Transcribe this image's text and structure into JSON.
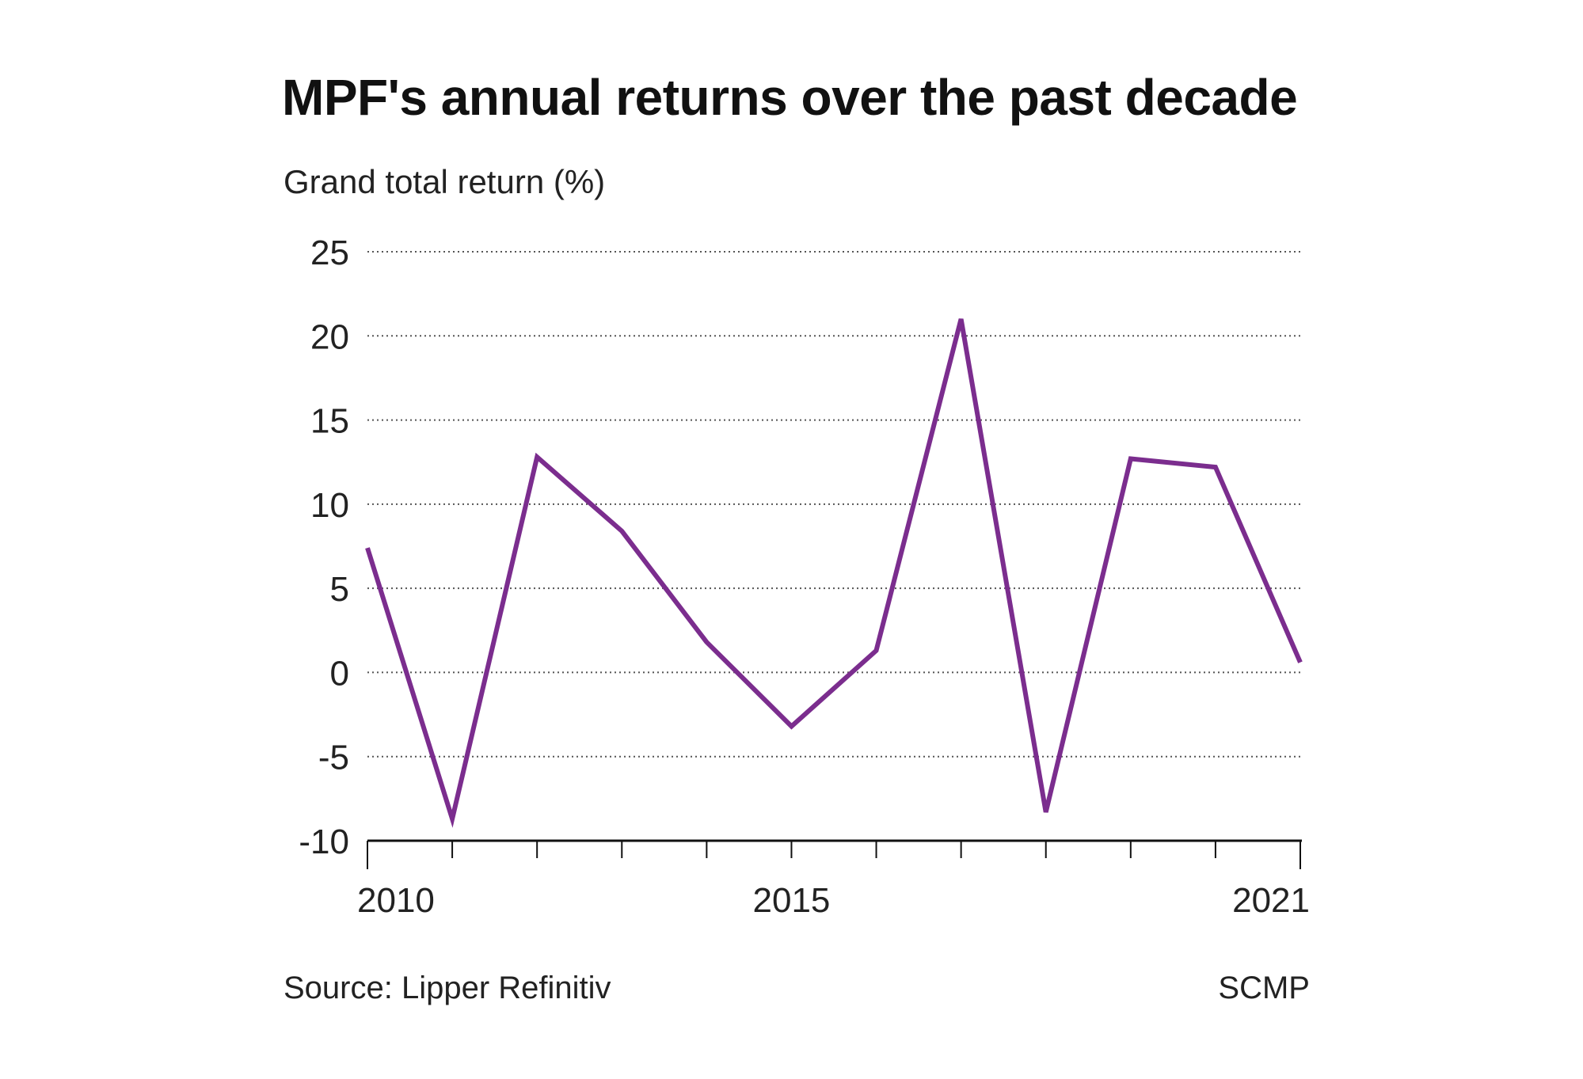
{
  "chart_data": {
    "type": "line",
    "title": "MPF's annual returns over the past decade",
    "subtitle": "Grand total return (%)",
    "x": [
      2010,
      2011,
      2012,
      2013,
      2014,
      2015,
      2016,
      2017,
      2018,
      2019,
      2020,
      2021
    ],
    "series": [
      {
        "values": [
          7.4,
          -8.7,
          12.8,
          8.4,
          1.8,
          -3.2,
          1.3,
          21.0,
          -8.3,
          12.7,
          12.2,
          0.6
        ]
      }
    ],
    "x_tick_labels": [
      "2010",
      "2015",
      "2021"
    ],
    "x_tick_label_values": [
      2010,
      2015,
      2021
    ],
    "y_ticks": [
      25,
      20,
      15,
      10,
      5,
      0,
      -5,
      -10
    ],
    "y_tick_labels": [
      "25",
      "20",
      "15",
      "10",
      "5",
      "0",
      "-5",
      "-10"
    ],
    "ylim": [
      -10,
      25
    ],
    "xlim": [
      2010,
      2021
    ],
    "grid": "horizontal-dotted",
    "line_color": "#7b2d8e",
    "source": "Source: Lipper Refinitiv",
    "credit": "SCMP"
  }
}
